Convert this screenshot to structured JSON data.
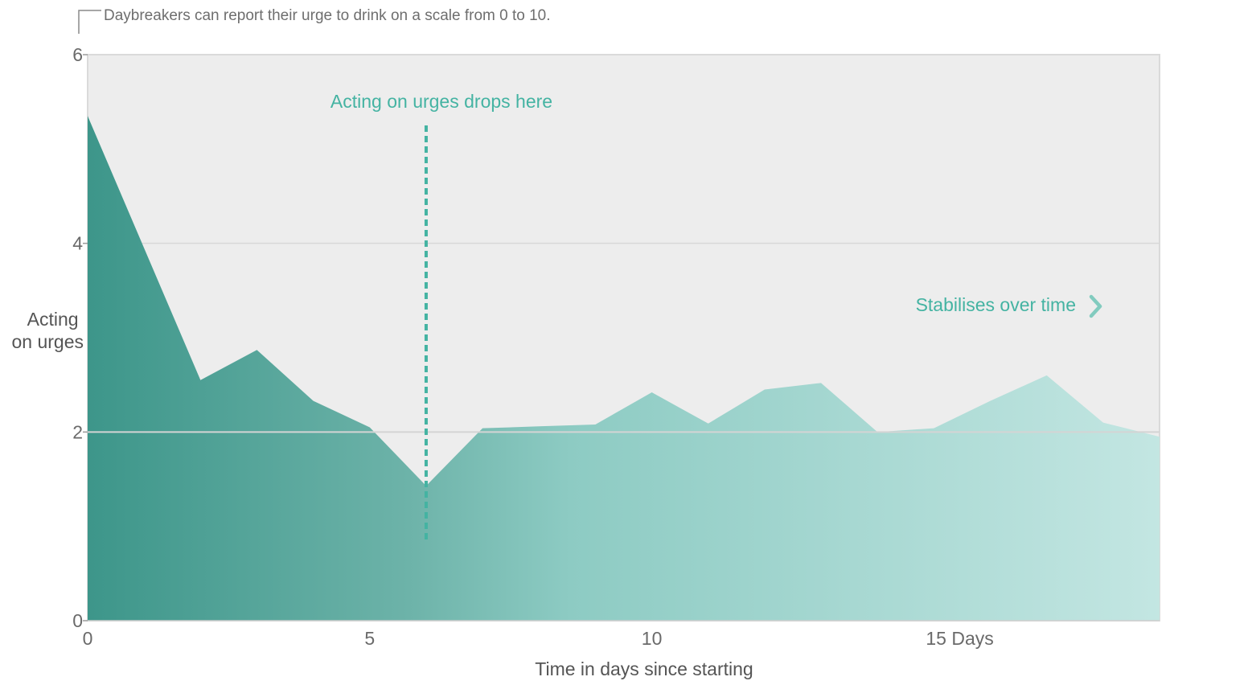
{
  "chart_data": {
    "type": "area",
    "note": "Daybreakers can report their urge to drink on a scale from 0 to 10.",
    "ylabel_lines": [
      "Acting",
      "on urges"
    ],
    "xlabel": "Time in days since starting",
    "xlim": [
      0,
      19
    ],
    "ylim": [
      0,
      6
    ],
    "x_ticks": [
      {
        "value": 0,
        "label": "0"
      },
      {
        "value": 5,
        "label": "5"
      },
      {
        "value": 10,
        "label": "10"
      },
      {
        "value": 15,
        "label": "15 Days"
      }
    ],
    "y_ticks": [
      {
        "value": 0,
        "label": "0"
      },
      {
        "value": 2,
        "label": "2"
      },
      {
        "value": 4,
        "label": "4"
      },
      {
        "value": 6,
        "label": "6"
      }
    ],
    "grid": true,
    "series": [
      {
        "x": [
          0,
          2,
          3,
          4,
          5,
          6,
          7,
          8,
          9,
          10,
          11,
          12,
          13,
          14,
          15,
          16,
          17,
          18,
          19
        ],
        "values": [
          5.35,
          2.55,
          2.87,
          2.33,
          2.05,
          1.43,
          2.04,
          2.06,
          2.08,
          2.42,
          2.09,
          2.45,
          2.52,
          2.0,
          2.04,
          2.33,
          2.6,
          2.1,
          1.95
        ]
      }
    ],
    "annotations": [
      {
        "text": "Acting on urges drops here",
        "x": 6,
        "y_range": [
          0.85,
          5.25
        ]
      },
      {
        "text": "Stabilises over time",
        "icon": "chevron-right-icon"
      }
    ],
    "colors": {
      "plot_background": "#ededed",
      "gridline": "#d8d8d8",
      "reference_line": "#d4d4d4",
      "area_start": "#3d968a",
      "area_mid": "#8dcbc3",
      "area_end": "#c3e6e2",
      "annotation": "#44b3a2",
      "chevron": "#82cbbf"
    }
  }
}
